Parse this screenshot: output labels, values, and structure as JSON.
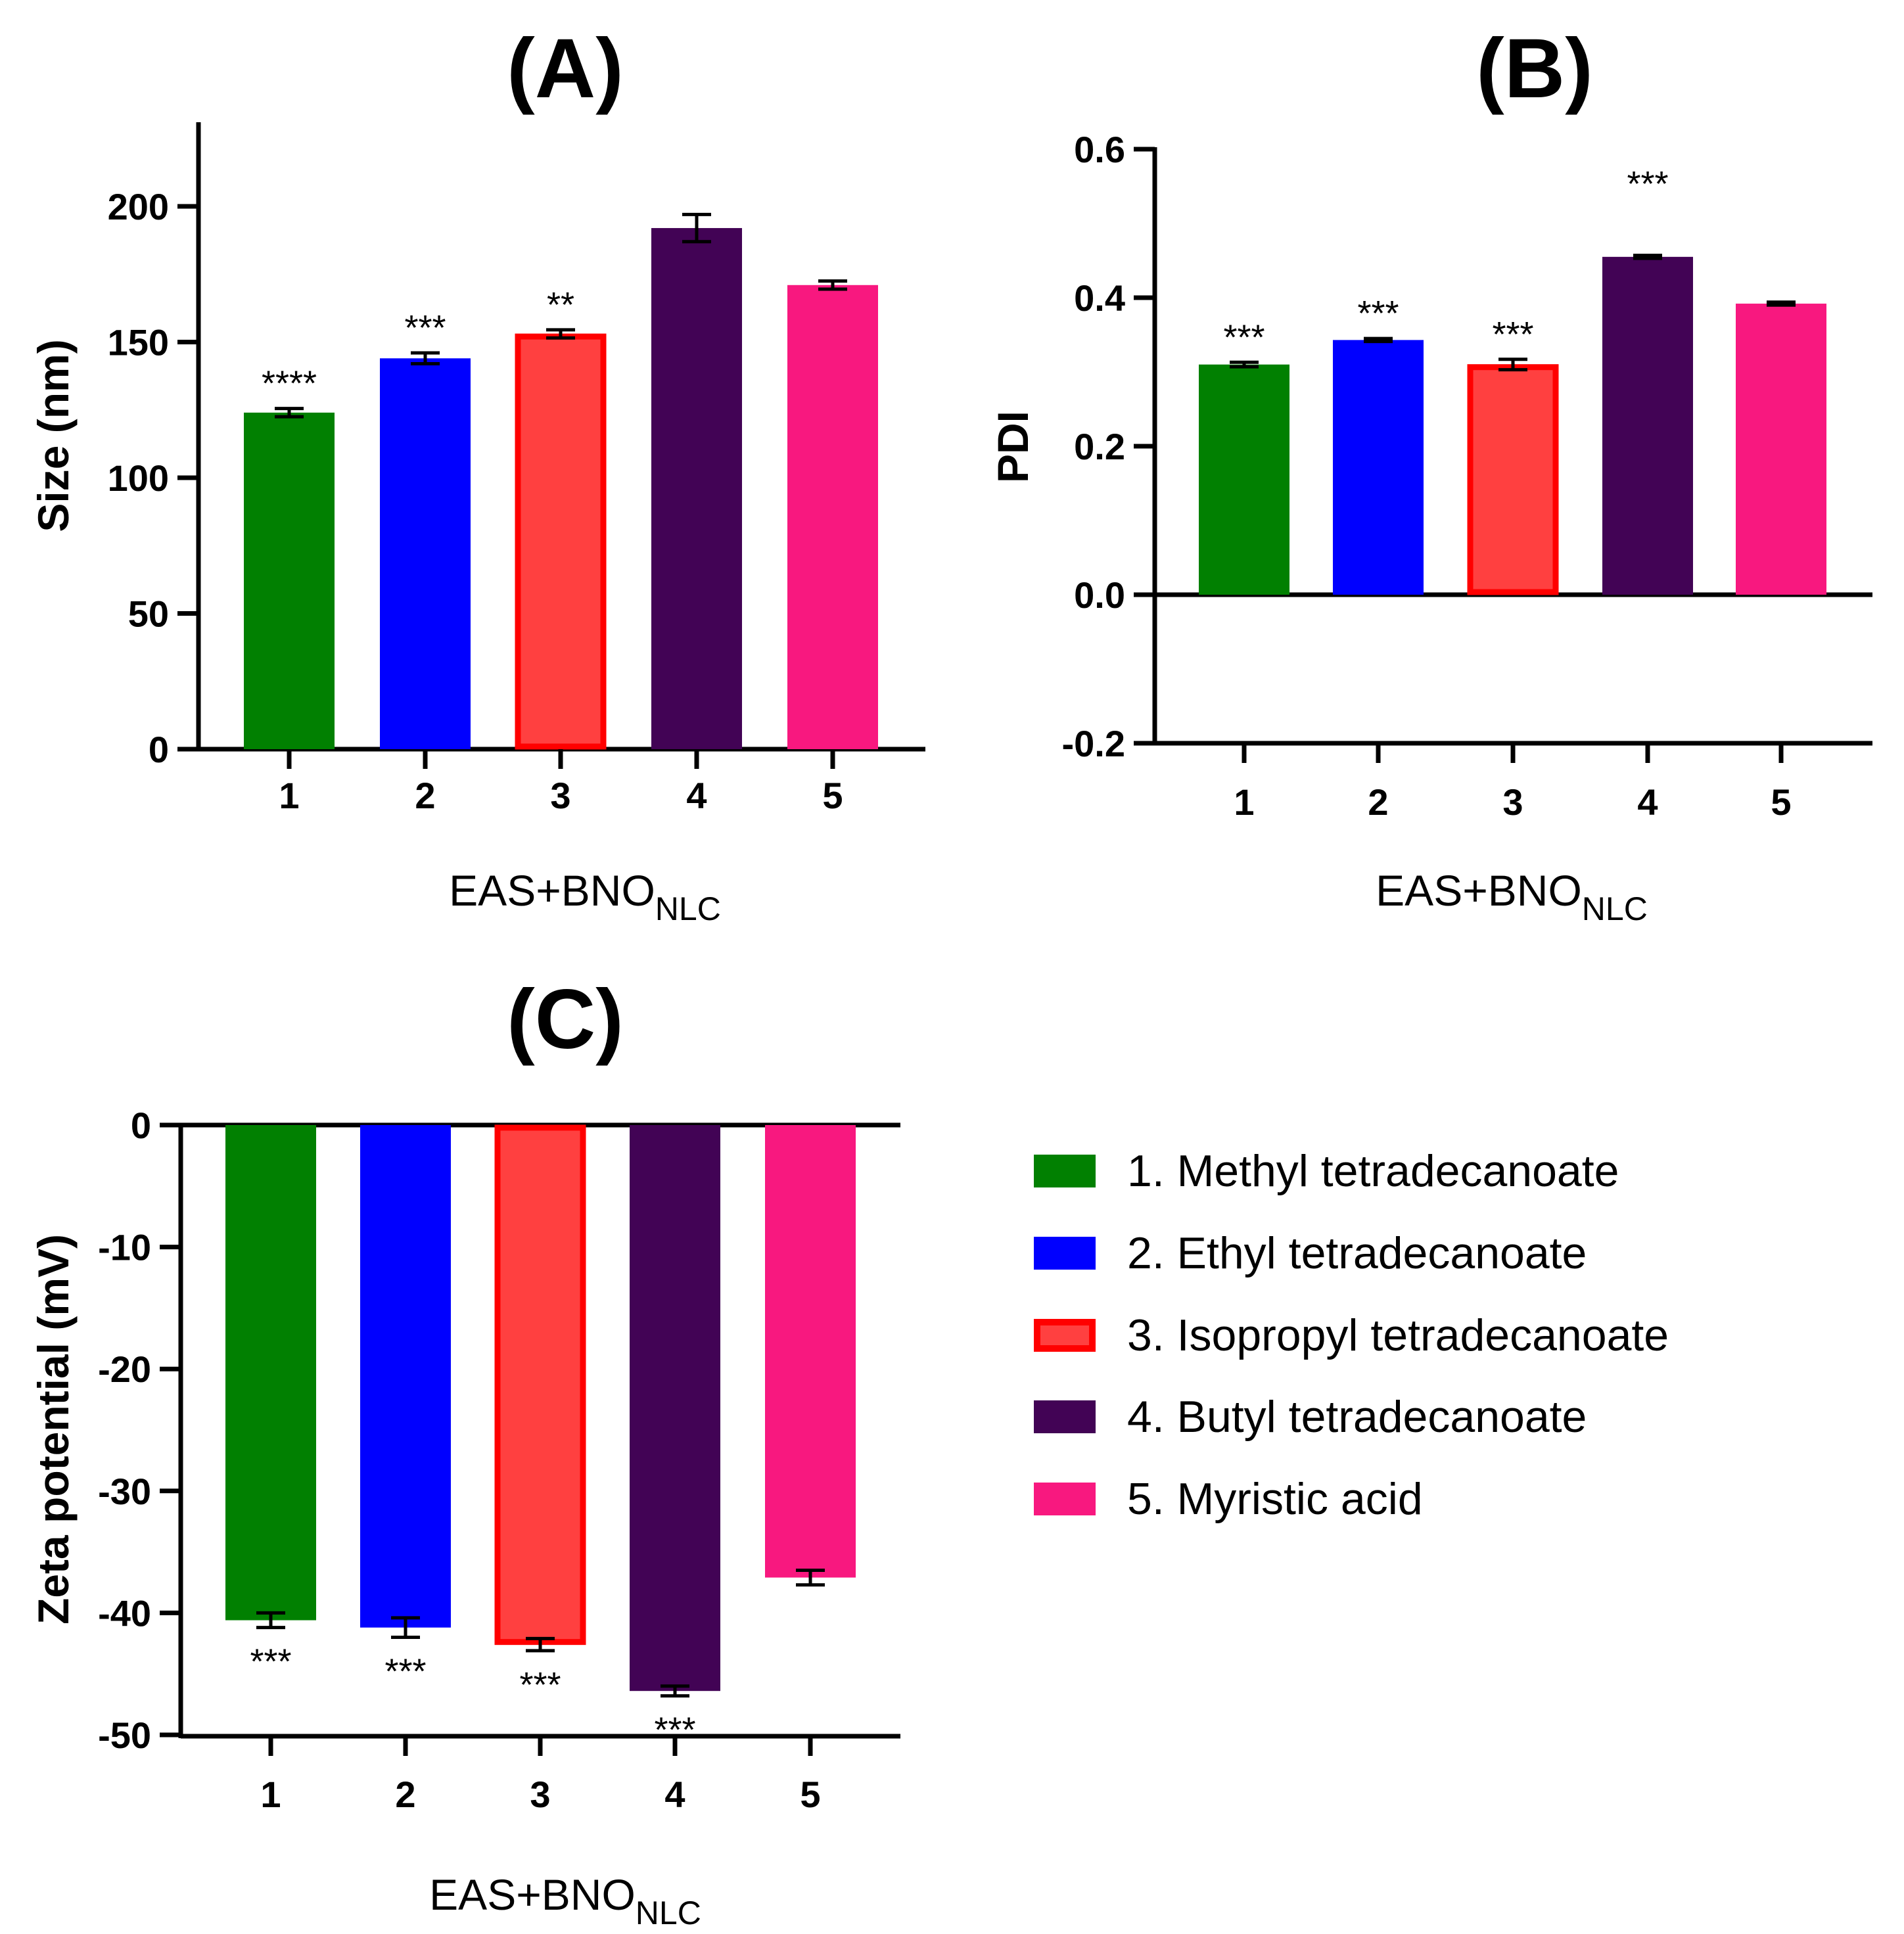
{
  "categories": [
    "1",
    "2",
    "3",
    "4",
    "5"
  ],
  "colors": [
    "#018001",
    "#0000ff",
    "#ff4040",
    "#420355",
    "#f8187f"
  ],
  "bar3_border": "#ff0000",
  "xlabel_main": "EAS+BNO",
  "xlabel_sub": "NLC",
  "legend": [
    "1.  Methyl tetradecanoate",
    "2. Ethyl tetradecanoate",
    "3. Isopropyl tetradecanoate",
    "4. Butyl tetradecanoate",
    "5. Myristic acid"
  ],
  "chart_data": [
    {
      "panel": "(A)",
      "type": "bar",
      "ylabel": "Size (nm)",
      "ylim": [
        0,
        230
      ],
      "yticks": [
        0,
        50,
        100,
        150,
        200
      ],
      "yticklabels": [
        "0",
        "50",
        "100",
        "150",
        "200"
      ],
      "categories": [
        "1",
        "2",
        "3",
        "4",
        "5"
      ],
      "values": [
        124,
        144,
        153,
        192,
        171
      ],
      "errors": [
        1.5,
        2,
        1.5,
        5,
        1.5
      ],
      "significance": [
        "****",
        "***",
        "**",
        "",
        ""
      ]
    },
    {
      "panel": "(B)",
      "type": "bar",
      "ylabel": "PDI",
      "ylim": [
        -0.2,
        0.6
      ],
      "yticks": [
        -0.2,
        0.0,
        0.2,
        0.4,
        0.6
      ],
      "yticklabels": [
        "-0.2",
        "0.0",
        "0.2",
        "0.4",
        "0.6"
      ],
      "categories": [
        "1",
        "2",
        "3",
        "4",
        "5"
      ],
      "values": [
        0.31,
        0.343,
        0.31,
        0.455,
        0.392
      ],
      "errors": [
        0.003,
        0.002,
        0.007,
        0.002,
        0.002
      ],
      "significance": [
        "***",
        "***",
        "***",
        "***",
        ""
      ]
    },
    {
      "panel": "(C)",
      "type": "bar",
      "ylabel": "Zeta potential (mV)",
      "ylim": [
        -50,
        0
      ],
      "yticks": [
        -50,
        -40,
        -30,
        -20,
        -10,
        0
      ],
      "yticklabels": [
        "-50",
        "-40",
        "-30",
        "-20",
        "-10",
        "0"
      ],
      "categories": [
        "1",
        "2",
        "3",
        "4",
        "5"
      ],
      "values": [
        -40.6,
        -41.2,
        -42.6,
        -46.4,
        -37.1
      ],
      "errors": [
        0.6,
        0.8,
        0.5,
        0.4,
        0.6
      ],
      "significance": [
        "***",
        "***",
        "***",
        "***",
        ""
      ]
    }
  ]
}
